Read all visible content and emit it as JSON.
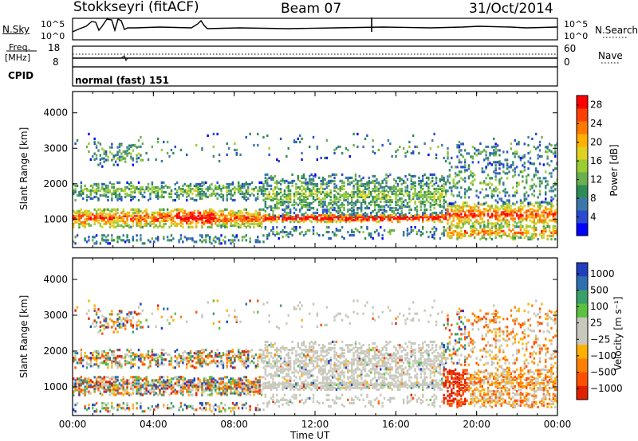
{
  "header": {
    "station": "Stokkseyri (fitACF)",
    "beam": "Beam 07",
    "date": "31/Oct/2014"
  },
  "noise_panel": {
    "left_label": "N.Sky",
    "left_ticks": [
      "10^5",
      "10^0"
    ],
    "right_ticks": [
      "10^5",
      "10^0"
    ],
    "right_label": "N.Search"
  },
  "freq_panel": {
    "left_label_line1": "Freq.",
    "left_label_line2": "[MHz]",
    "left_ticks": [
      "18",
      "8"
    ],
    "right_ticks": [
      "60",
      "0"
    ],
    "right_label": "Nave"
  },
  "cpid": {
    "label": "CPID",
    "value": "normal (fast) 151"
  },
  "chart_data": [
    {
      "type": "heatmap",
      "ylabel": "Slant Range [km]",
      "y_ticks": [
        "1000",
        "2000",
        "3000",
        "4000"
      ],
      "ylim": [
        200,
        4600
      ],
      "xlim_hours": [
        0,
        24
      ],
      "colorbar": {
        "label": "Power [dB]",
        "tick_labels": [
          "4",
          "8",
          "12",
          "16",
          "20",
          "24",
          "28"
        ],
        "range": [
          0,
          30
        ],
        "colors": [
          "#0000ff",
          "#2a4bd0",
          "#3a78a8",
          "#2e8b57",
          "#6ab04c",
          "#9acd32",
          "#e0d020",
          "#ffb000",
          "#ff7a00",
          "#ff4000",
          "#ff0000"
        ]
      }
    },
    {
      "type": "heatmap",
      "ylabel": "Slant Range [km]",
      "y_ticks": [
        "1000",
        "2000",
        "3000",
        "4000"
      ],
      "ylim": [
        200,
        4600
      ],
      "xlim_hours": [
        0,
        24
      ],
      "colorbar": {
        "label": "Velocity [m s⁻¹]",
        "tick_labels": [
          "1000",
          "500",
          "100",
          "25",
          "−25",
          "−100",
          "−500",
          "−1000"
        ],
        "colors": [
          "#1f3fbf",
          "#2e6fb0",
          "#3aa06a",
          "#5cc040",
          "#c8c8bc",
          "#c8c8bc",
          "#ffb000",
          "#ff8000",
          "#ff5000",
          "#e02000"
        ]
      }
    }
  ],
  "x_axis": {
    "tick_labels": [
      "00:00",
      "04:00",
      "08:00",
      "12:00",
      "16:00",
      "20:00",
      "00:00"
    ],
    "label": "Time UT"
  }
}
